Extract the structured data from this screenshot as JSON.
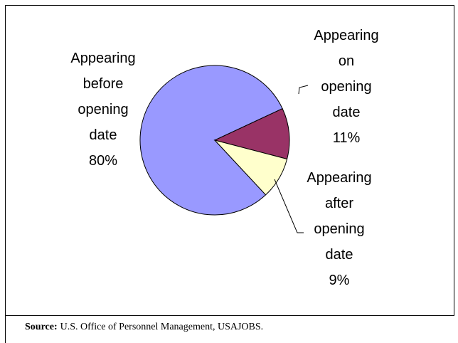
{
  "chart_data": {
    "type": "pie",
    "categories": [
      "Appearing before opening date",
      "Appearing on opening date",
      "Appearing after opening date"
    ],
    "values": [
      80,
      11,
      9
    ],
    "value_labels": [
      "80%",
      "11%",
      "9%"
    ],
    "colors": [
      "#9999ff",
      "#993366",
      "#ffffcc"
    ]
  },
  "source": {
    "label": "Source:",
    "text": "U.S. Office of Personnel Management, USAJOBS."
  }
}
